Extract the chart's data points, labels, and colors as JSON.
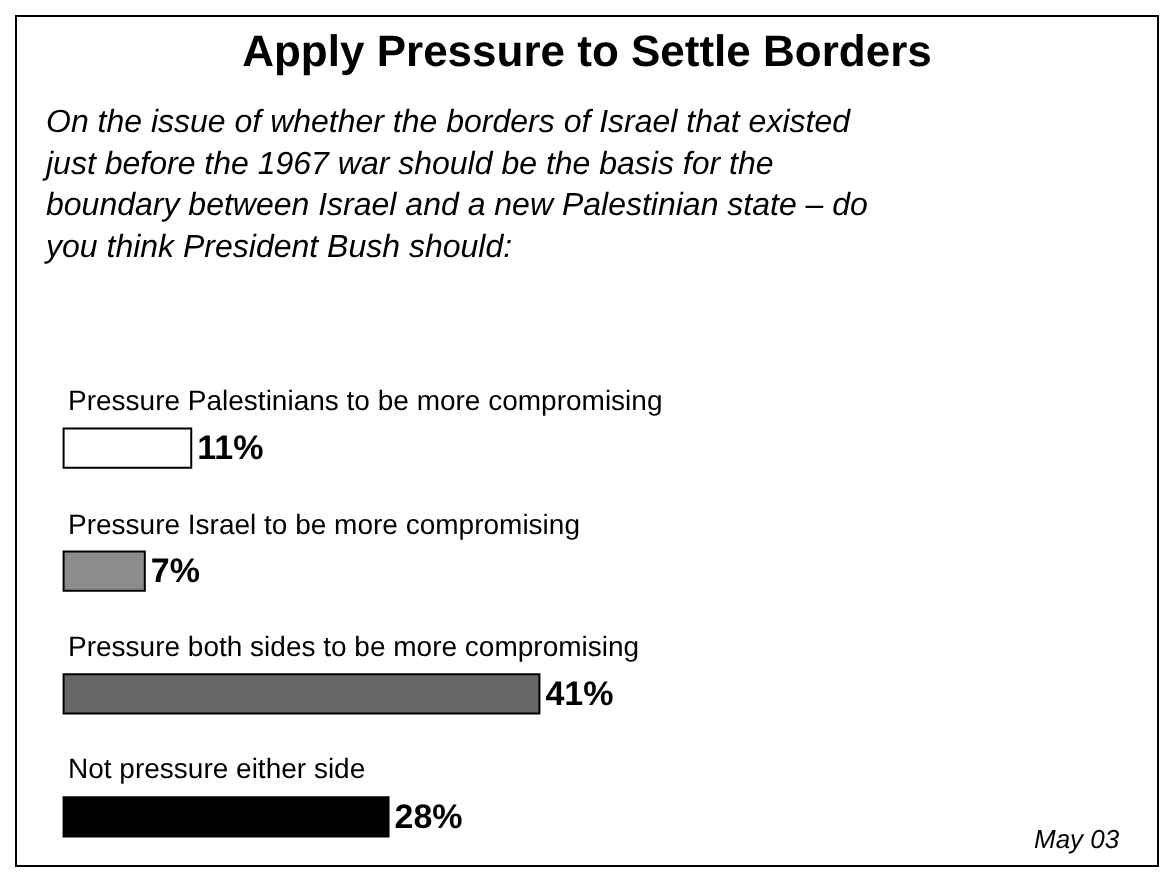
{
  "chart_data": {
    "type": "bar",
    "orientation": "horizontal",
    "title": "Apply Pressure to Settle Borders",
    "subtitle": "On the issue of whether the borders of Israel that existed just before the 1967 war should be the basis for the boundary between Israel and a new Palestinian state – do you think President Bush should:",
    "categories": [
      "Pressure Palestinians to be more compromising",
      "Pressure Israel to be more compromising",
      "Pressure both sides to be more compromising",
      "Not pressure either side"
    ],
    "values": [
      11,
      7,
      41,
      28
    ],
    "colors": [
      "#ffffff",
      "#8c8c8c",
      "#666666",
      "#000000"
    ],
    "value_labels": [
      "11%",
      "7%",
      "41%",
      "28%"
    ],
    "annotations": [
      "May 03"
    ]
  }
}
